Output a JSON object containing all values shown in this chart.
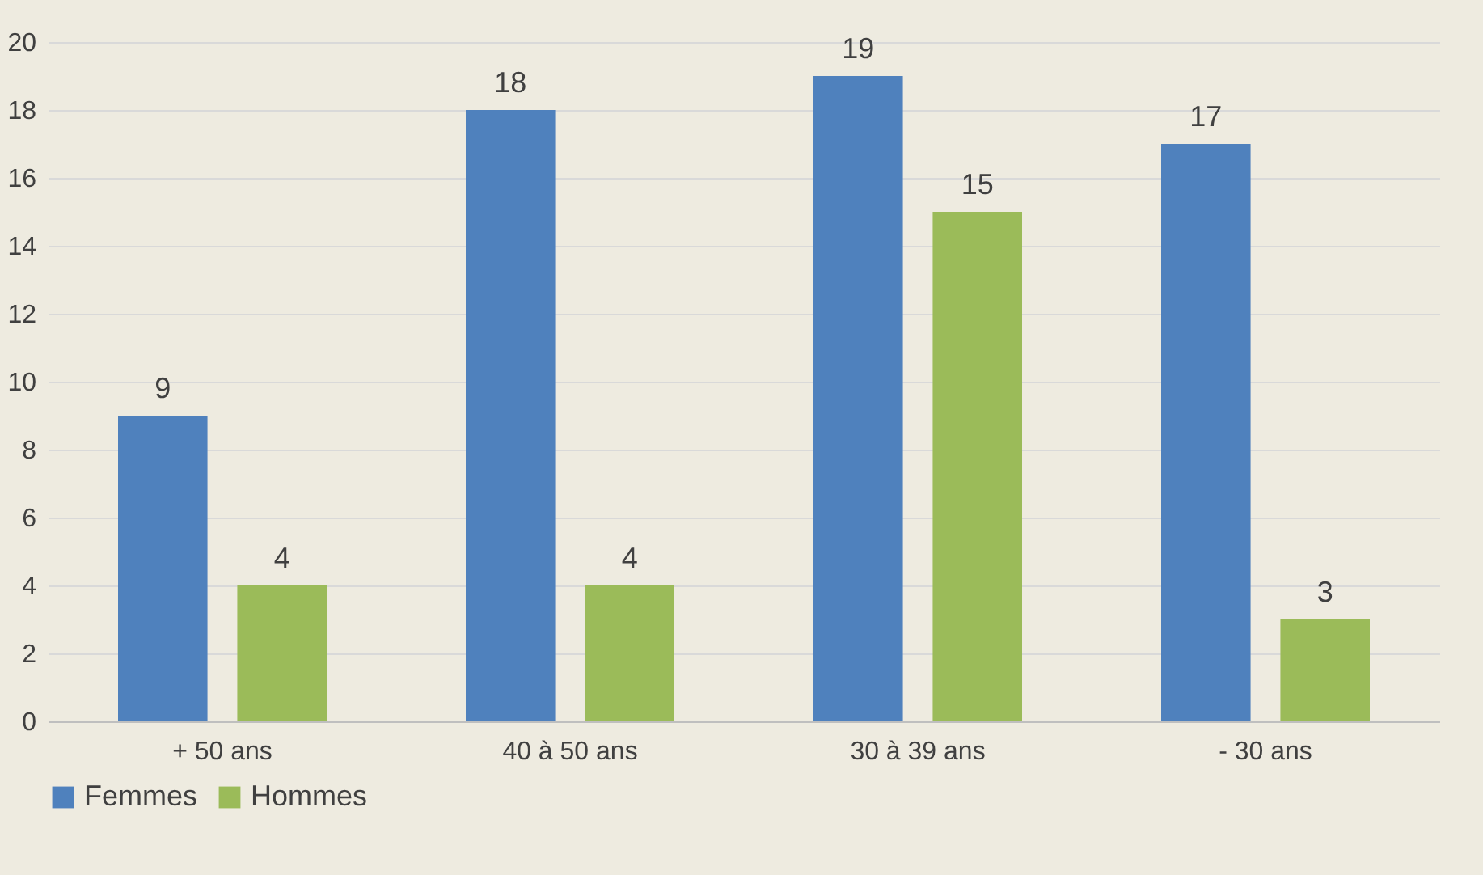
{
  "chart_data": {
    "type": "bar",
    "categories": [
      "+ 50 ans",
      "40 à 50 ans",
      "30 à 39 ans",
      "- 30 ans"
    ],
    "series": [
      {
        "name": "Femmes",
        "color": "#4f81bd",
        "values": [
          9,
          18,
          19,
          17
        ]
      },
      {
        "name": "Hommes",
        "color": "#9bbb59",
        "values": [
          4,
          4,
          15,
          3
        ]
      }
    ],
    "ylim": [
      0,
      20
    ],
    "yticks": [
      0,
      2,
      4,
      6,
      8,
      10,
      12,
      14,
      16,
      18,
      20
    ],
    "grid": "y",
    "legend": "bottom",
    "data_labels": true
  }
}
